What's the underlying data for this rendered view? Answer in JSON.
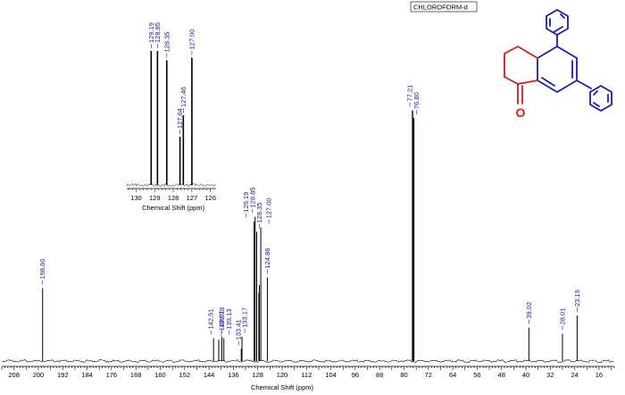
{
  "chart_data": [
    {
      "type": "line",
      "name": "main-13c-spectrum",
      "xlabel": "Chemical Shift (ppm)",
      "xlim": [
        212,
        11
      ],
      "x_ticks": [
        208,
        200,
        192,
        184,
        176,
        168,
        160,
        152,
        144,
        136,
        128,
        120,
        112,
        104,
        96,
        88,
        80,
        72,
        64,
        56,
        48,
        40,
        32,
        24,
        16
      ],
      "solvent_label": "CHLOROFORM-d",
      "peaks": [
        {
          "ppm": 198.6,
          "label": "198.60",
          "height": 0.48
        },
        {
          "ppm": 142.51,
          "label": "142.51",
          "height": 0.15
        },
        {
          "ppm": 140.81,
          "label": "140.81",
          "height": 0.14
        },
        {
          "ppm": 139.78,
          "label": "139.78",
          "height": 0.16
        },
        {
          "ppm": 139.13,
          "label": "139.13",
          "height": 0.15
        },
        {
          "ppm": 133.41,
          "label": "133.41",
          "height": 0.08
        },
        {
          "ppm": 133.17,
          "label": "133.17",
          "height": 0.16
        },
        {
          "ppm": 129.19,
          "label": "129.19",
          "height": 0.92
        },
        {
          "ppm": 128.85,
          "label": "128.85",
          "height": 0.95
        },
        {
          "ppm": 128.35,
          "label": "128.35",
          "height": 0.85
        },
        {
          "ppm": 127.64,
          "label": "127.64",
          "height": 0.45
        },
        {
          "ppm": 127.46,
          "label": "127.46",
          "height": 0.5
        },
        {
          "ppm": 127.0,
          "label": "127.00",
          "height": 0.88
        },
        {
          "ppm": 124.86,
          "label": "124.86",
          "height": 0.55
        },
        {
          "ppm": 77.21,
          "label": "77.21",
          "height": 1.65
        },
        {
          "ppm": 76.8,
          "label": "76.80",
          "height": 1.6
        },
        {
          "ppm": 39.02,
          "label": "39.02",
          "height": 0.22
        },
        {
          "ppm": 28.01,
          "label": "28.01",
          "height": 0.18
        },
        {
          "ppm": 23.19,
          "label": "23.19",
          "height": 0.3
        }
      ],
      "labeled_peaks": [
        {
          "ppm": 198.6,
          "label": "198.60"
        },
        {
          "ppm": 142.51,
          "label": "142.51"
        },
        {
          "ppm": 140.81,
          "label": "140.81"
        },
        {
          "ppm": 139.78,
          "label": "139.78"
        },
        {
          "ppm": 139.13,
          "label": "139.13"
        },
        {
          "ppm": 133.41,
          "label": "133.41"
        },
        {
          "ppm": 133.17,
          "label": "133.17"
        },
        {
          "ppm": 129.19,
          "label": "129.19"
        },
        {
          "ppm": 128.85,
          "label": "128.85"
        },
        {
          "ppm": 128.35,
          "label": "128.35"
        },
        {
          "ppm": 127.0,
          "label": "127.00"
        },
        {
          "ppm": 124.86,
          "label": "124.86"
        },
        {
          "ppm": 77.21,
          "label": "77.21"
        },
        {
          "ppm": 76.8,
          "label": "76.80"
        },
        {
          "ppm": 39.02,
          "label": "39.02"
        },
        {
          "ppm": 28.01,
          "label": "28.01"
        },
        {
          "ppm": 23.19,
          "label": "23.19"
        }
      ]
    },
    {
      "type": "line",
      "name": "inset-aromatic-expansion",
      "xlabel": "Chemical Shift (ppm)",
      "xlim": [
        130.5,
        125.7
      ],
      "x_ticks": [
        130,
        129,
        128,
        127,
        126
      ],
      "peaks": [
        {
          "ppm": 129.19,
          "label": "129.19",
          "height": 1.0
        },
        {
          "ppm": 128.85,
          "label": "128.85",
          "height": 1.0
        },
        {
          "ppm": 128.35,
          "label": "128.35",
          "height": 0.93
        },
        {
          "ppm": 127.64,
          "label": "127.64",
          "height": 0.36
        },
        {
          "ppm": 127.46,
          "label": "127.46",
          "height": 0.52
        },
        {
          "ppm": 127.0,
          "label": "127.00",
          "height": 0.95
        }
      ]
    }
  ],
  "structure": {
    "name": "5,7-diphenyl-3,4-dihydronaphthalen-1(2H)-one",
    "carbonyl_atom": "O",
    "colors": {
      "ring_new": "#d01c1c",
      "aromatic": "#1c1caa"
    }
  }
}
